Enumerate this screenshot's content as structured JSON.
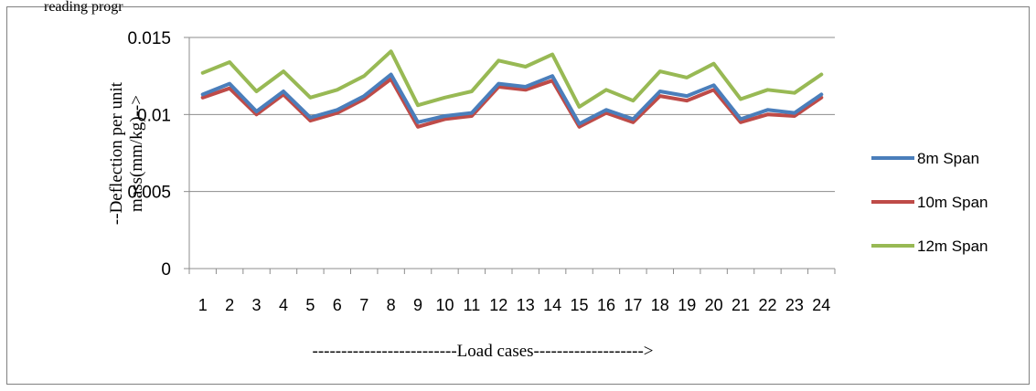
{
  "header_fragment": "reading progr",
  "chart_data": {
    "type": "line",
    "title": "",
    "xlabel": "-------------------------Load cases------------------->",
    "ylabel_lines": [
      "--Deflection per unit",
      "mass(mm/kg)-->"
    ],
    "categories": [
      "1",
      "2",
      "3",
      "4",
      "5",
      "6",
      "7",
      "8",
      "9",
      "10",
      "11",
      "12",
      "13",
      "14",
      "15",
      "16",
      "17",
      "18",
      "19",
      "20",
      "21",
      "22",
      "23",
      "24"
    ],
    "ylim": [
      0,
      0.015
    ],
    "yticks": [
      "0",
      "0.005",
      "0.01",
      "0.015"
    ],
    "ytick_values": [
      0,
      0.005,
      0.01,
      0.015
    ],
    "grid": true,
    "legend_position": "right",
    "series": [
      {
        "name": "8m Span",
        "color": "#4a7ebb",
        "values": [
          0.0113,
          0.012,
          0.0102,
          0.0115,
          0.0098,
          0.0103,
          0.0112,
          0.0126,
          0.0095,
          0.0099,
          0.0101,
          0.012,
          0.0118,
          0.0125,
          0.0094,
          0.0103,
          0.0097,
          0.0115,
          0.0112,
          0.0119,
          0.0097,
          0.0103,
          0.0101,
          0.0113
        ]
      },
      {
        "name": "10m Span",
        "color": "#be4b48",
        "values": [
          0.0111,
          0.0117,
          0.01,
          0.0113,
          0.0096,
          0.0101,
          0.011,
          0.0123,
          0.0092,
          0.0097,
          0.0099,
          0.0118,
          0.0116,
          0.0122,
          0.0092,
          0.0101,
          0.0095,
          0.0112,
          0.0109,
          0.0116,
          0.0095,
          0.01,
          0.0099,
          0.0111
        ]
      },
      {
        "name": "12m Span",
        "color": "#98b954",
        "values": [
          0.0127,
          0.0134,
          0.0115,
          0.0128,
          0.0111,
          0.0116,
          0.0125,
          0.0141,
          0.0106,
          0.0111,
          0.0115,
          0.0135,
          0.0131,
          0.0139,
          0.0105,
          0.0116,
          0.0109,
          0.0128,
          0.0124,
          0.0133,
          0.011,
          0.0116,
          0.0114,
          0.0126
        ]
      }
    ]
  }
}
